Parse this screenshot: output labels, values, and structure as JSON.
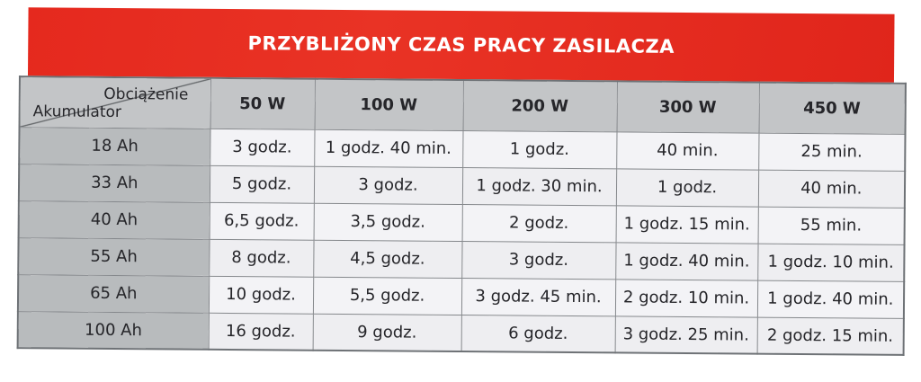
{
  "title": "PRZYBLIŻONY CZAS PRACY ZASILACZA",
  "table": {
    "corner": {
      "top_right": "Obciążenie",
      "bottom_left": "Akumulator"
    },
    "columns": [
      "50 W",
      "100 W",
      "200 W",
      "300 W",
      "450 W"
    ],
    "rows": [
      {
        "battery": "18 Ah",
        "values": [
          "3 godz.",
          "1 godz. 40 min.",
          "1 godz.",
          "40 min.",
          "25 min."
        ]
      },
      {
        "battery": "33 Ah",
        "values": [
          "5 godz.",
          "3 godz.",
          "1 godz. 30 min.",
          "1 godz.",
          "40 min."
        ]
      },
      {
        "battery": "40 Ah",
        "values": [
          "6,5 godz.",
          "3,5 godz.",
          "2 godz.",
          "1 godz. 15 min.",
          "55 min."
        ]
      },
      {
        "battery": "55 Ah",
        "values": [
          "8 godz.",
          "4,5 godz.",
          "3 godz.",
          "1 godz. 40 min.",
          "1 godz. 10 min."
        ]
      },
      {
        "battery": "65 Ah",
        "values": [
          "10 godz.",
          "5,5 godz.",
          "3 godz. 45 min.",
          "2 godz. 10 min.",
          "1 godz. 40 min."
        ]
      },
      {
        "battery": "100 Ah",
        "values": [
          "16 godz.",
          "9 godz.",
          "6 godz.",
          "3 godz. 25 min.",
          "2 godz. 15 min."
        ]
      }
    ]
  },
  "colors": {
    "banner_red": "#e5291e",
    "header_gray": "#c3c5c7",
    "battery_gray": "#b8bbbd",
    "data_cell": "#f1f1f4",
    "border": "#84878b",
    "text": "#26262a",
    "title_text": "#ffffff"
  }
}
